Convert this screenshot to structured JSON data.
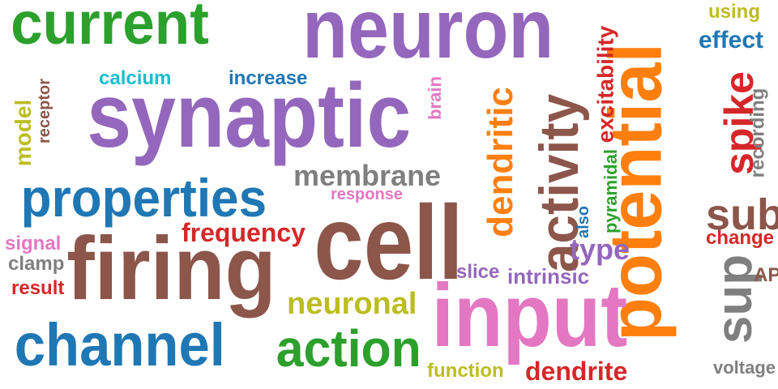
{
  "palette": {
    "green": "#2ca02c",
    "purple": "#9467bd",
    "orange": "#ff7f0e",
    "blue": "#1f77b4",
    "brown": "#8c564b",
    "pink": "#e377c2",
    "gray": "#7f7f7f",
    "olive": "#bcbd22",
    "cyan": "#17becf",
    "red": "#d62728"
  },
  "words": [
    {
      "text": "current",
      "color": "green"
    },
    {
      "text": "neuron",
      "color": "purple"
    },
    {
      "text": "potential",
      "color": "orange"
    },
    {
      "text": "using",
      "color": "olive"
    },
    {
      "text": "effect",
      "color": "blue"
    },
    {
      "text": "excitability",
      "color": "red"
    },
    {
      "text": "calcium",
      "color": "cyan"
    },
    {
      "text": "increase",
      "color": "blue"
    },
    {
      "text": "model",
      "color": "olive"
    },
    {
      "text": "receptor",
      "color": "brown"
    },
    {
      "text": "synaptic",
      "color": "purple"
    },
    {
      "text": "brain",
      "color": "pink"
    },
    {
      "text": "dendritic",
      "color": "orange"
    },
    {
      "text": "activity",
      "color": "brown"
    },
    {
      "text": "spike",
      "color": "red"
    },
    {
      "text": "recording",
      "color": "gray"
    },
    {
      "text": "membrane",
      "color": "gray"
    },
    {
      "text": "response",
      "color": "pink"
    },
    {
      "text": "properties",
      "color": "blue"
    },
    {
      "text": "pyramidal",
      "color": "green"
    },
    {
      "text": "sub",
      "color": "brown"
    },
    {
      "text": "cell",
      "color": "brown"
    },
    {
      "text": "also",
      "color": "blue"
    },
    {
      "text": "frequency",
      "color": "red"
    },
    {
      "text": "change",
      "color": "red"
    },
    {
      "text": "signal",
      "color": "pink"
    },
    {
      "text": "firing",
      "color": "brown"
    },
    {
      "text": "type",
      "color": "purple"
    },
    {
      "text": "clamp",
      "color": "gray"
    },
    {
      "text": "slice",
      "color": "purple"
    },
    {
      "text": "intrinsic",
      "color": "purple"
    },
    {
      "text": "sup",
      "color": "gray"
    },
    {
      "text": "AP",
      "color": "brown"
    },
    {
      "text": "result",
      "color": "red"
    },
    {
      "text": "neuronal",
      "color": "olive"
    },
    {
      "text": "input",
      "color": "pink"
    },
    {
      "text": "channel",
      "color": "blue"
    },
    {
      "text": "action",
      "color": "green"
    },
    {
      "text": "function",
      "color": "olive"
    },
    {
      "text": "dendrite",
      "color": "red"
    },
    {
      "text": "voltage",
      "color": "gray"
    }
  ]
}
